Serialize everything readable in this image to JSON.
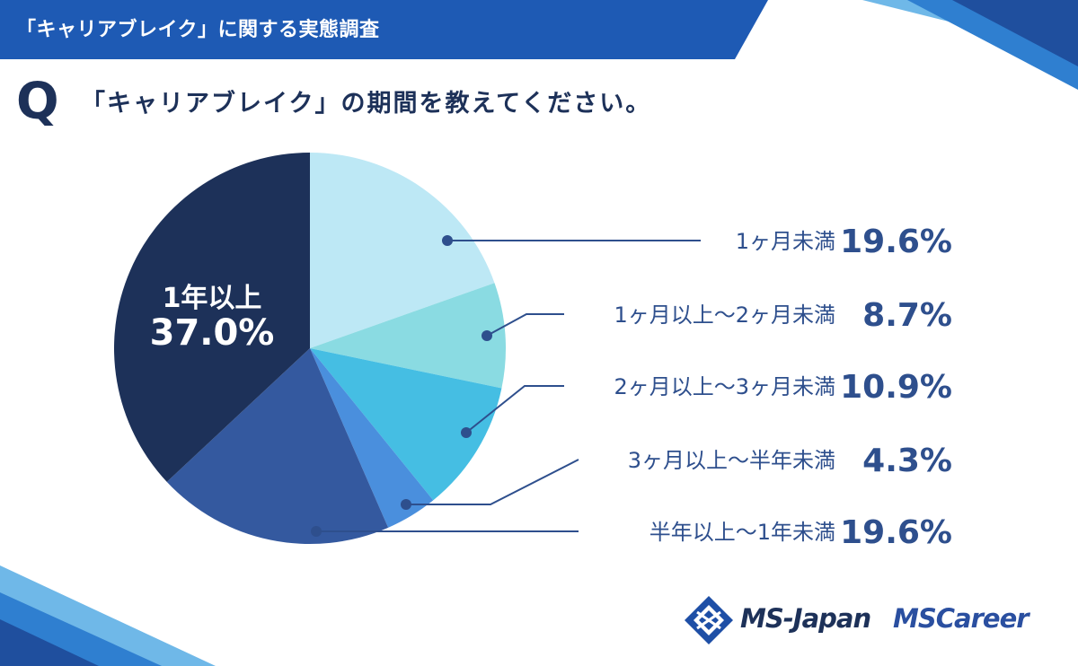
{
  "header": {
    "banner_title": "「キャリアブレイク」に関する実態調査"
  },
  "question": {
    "mark": "Q",
    "text": "「キャリアブレイク」の期間を教えてください。"
  },
  "logos": {
    "ms_japan": "MS-Japan",
    "ms_career": "MSCareer"
  },
  "chart_data": {
    "type": "pie",
    "start_angle_deg": 0,
    "direction": "clockwise",
    "slices": [
      {
        "label": "1ヶ月未満",
        "pct_label": "19.6%",
        "value": 19.6,
        "color": "#bde8f5"
      },
      {
        "label": "1ヶ月以上～2ヶ月未満",
        "pct_label": "8.7%",
        "value": 8.7,
        "color": "#8adbe2"
      },
      {
        "label": "2ヶ月以上～3ヶ月未満",
        "pct_label": "10.9%",
        "value": 10.9,
        "color": "#45bee3"
      },
      {
        "label": "3ヶ月以上～半年未満",
        "pct_label": "4.3%",
        "value": 4.3,
        "color": "#4a8fdd"
      },
      {
        "label": "半年以上～1年未満",
        "pct_label": "19.6%",
        "value": 19.6,
        "color": "#34599f"
      },
      {
        "label": "1年以上",
        "pct_label": "37.0%",
        "value": 37.0,
        "color": "#1d3159"
      }
    ],
    "label_color": "#2e4f8d"
  }
}
